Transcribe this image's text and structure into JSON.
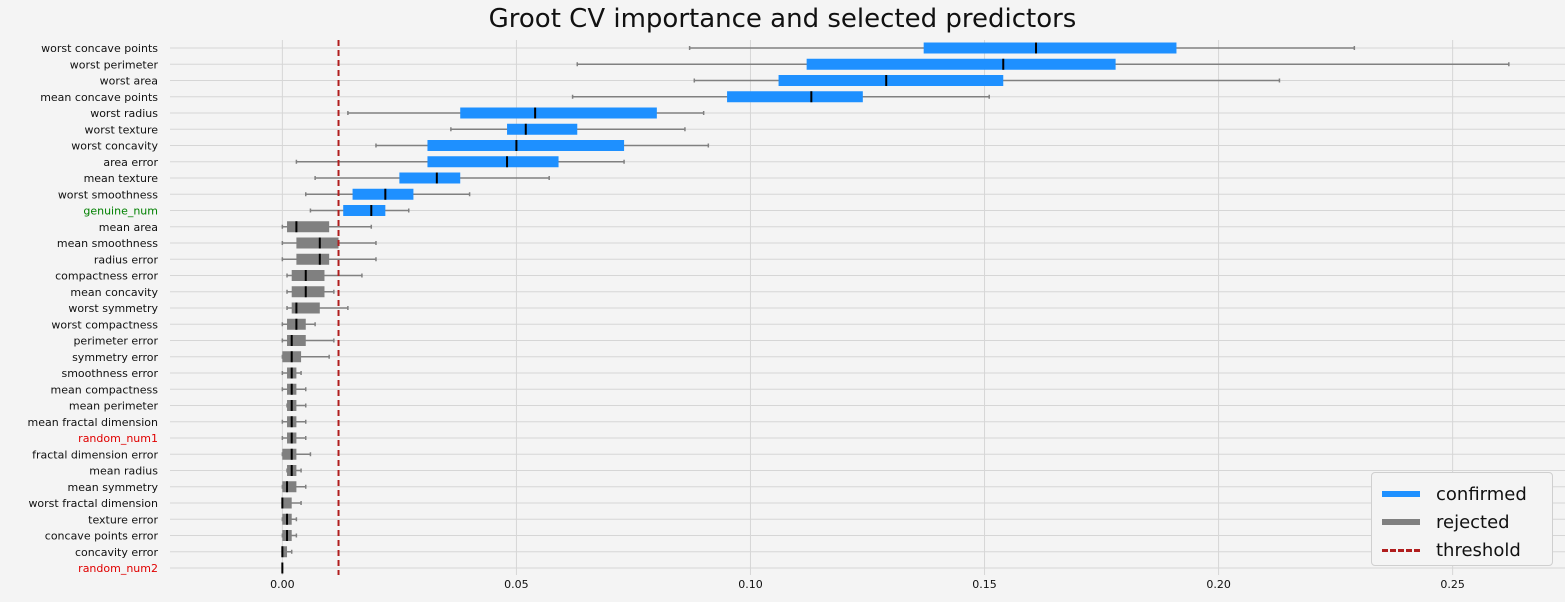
{
  "colors": {
    "confirmed": "#1e90ff",
    "rejected": "#808080",
    "threshold": "#b01d1d",
    "whisker": "#808080",
    "median": "#000000",
    "label_default": "#111111",
    "label_green": "#008000",
    "label_red": "#e00000",
    "grid": "#d6d6d6",
    "background": "#f4f4f4"
  },
  "chart_data": {
    "type": "boxplot",
    "orientation": "horizontal",
    "title": "Groot CV importance and selected predictors",
    "xlabel": "",
    "ylabel": "",
    "xlim": [
      -0.024,
      0.274
    ],
    "xticks": [
      0.0,
      0.05,
      0.1,
      0.15,
      0.2,
      0.25
    ],
    "xtick_labels": [
      "0.00",
      "0.05",
      "0.10",
      "0.15",
      "0.20",
      "0.25"
    ],
    "grid": true,
    "legend_position": "bottom-right",
    "threshold": 0.012,
    "legend": [
      {
        "label": "confirmed",
        "key": "confirmed"
      },
      {
        "label": "rejected",
        "key": "rejected"
      },
      {
        "label": "threshold",
        "key": "threshold"
      }
    ],
    "features": [
      {
        "name": "worst concave points",
        "status": "confirmed",
        "label_color": "default",
        "min": 0.087,
        "q1": 0.137,
        "median": 0.161,
        "q3": 0.191,
        "max": 0.229
      },
      {
        "name": "worst perimeter",
        "status": "confirmed",
        "label_color": "default",
        "min": 0.063,
        "q1": 0.112,
        "median": 0.154,
        "q3": 0.178,
        "max": 0.262
      },
      {
        "name": "worst area",
        "status": "confirmed",
        "label_color": "default",
        "min": 0.088,
        "q1": 0.106,
        "median": 0.129,
        "q3": 0.154,
        "max": 0.213
      },
      {
        "name": "mean concave points",
        "status": "confirmed",
        "label_color": "default",
        "min": 0.062,
        "q1": 0.095,
        "median": 0.113,
        "q3": 0.124,
        "max": 0.151
      },
      {
        "name": "worst radius",
        "status": "confirmed",
        "label_color": "default",
        "min": 0.014,
        "q1": 0.038,
        "median": 0.054,
        "q3": 0.08,
        "max": 0.09
      },
      {
        "name": "worst texture",
        "status": "confirmed",
        "label_color": "default",
        "min": 0.036,
        "q1": 0.048,
        "median": 0.052,
        "q3": 0.063,
        "max": 0.086
      },
      {
        "name": "worst concavity",
        "status": "confirmed",
        "label_color": "default",
        "min": 0.02,
        "q1": 0.031,
        "median": 0.05,
        "q3": 0.073,
        "max": 0.091
      },
      {
        "name": "area error",
        "status": "confirmed",
        "label_color": "default",
        "min": 0.003,
        "q1": 0.031,
        "median": 0.048,
        "q3": 0.059,
        "max": 0.073
      },
      {
        "name": "mean texture",
        "status": "confirmed",
        "label_color": "default",
        "min": 0.007,
        "q1": 0.025,
        "median": 0.033,
        "q3": 0.038,
        "max": 0.057
      },
      {
        "name": "worst smoothness",
        "status": "confirmed",
        "label_color": "default",
        "min": 0.005,
        "q1": 0.015,
        "median": 0.022,
        "q3": 0.028,
        "max": 0.04
      },
      {
        "name": "genuine_num",
        "status": "confirmed",
        "label_color": "green",
        "min": 0.006,
        "q1": 0.013,
        "median": 0.019,
        "q3": 0.022,
        "max": 0.027
      },
      {
        "name": "mean area",
        "status": "rejected",
        "label_color": "default",
        "min": 0.0,
        "q1": 0.001,
        "median": 0.003,
        "q3": 0.01,
        "max": 0.019
      },
      {
        "name": "mean smoothness",
        "status": "rejected",
        "label_color": "default",
        "min": 0.0,
        "q1": 0.003,
        "median": 0.008,
        "q3": 0.012,
        "max": 0.02
      },
      {
        "name": "radius error",
        "status": "rejected",
        "label_color": "default",
        "min": 0.0,
        "q1": 0.003,
        "median": 0.008,
        "q3": 0.01,
        "max": 0.02
      },
      {
        "name": "compactness error",
        "status": "rejected",
        "label_color": "default",
        "min": 0.001,
        "q1": 0.002,
        "median": 0.005,
        "q3": 0.009,
        "max": 0.017
      },
      {
        "name": "mean concavity",
        "status": "rejected",
        "label_color": "default",
        "min": 0.001,
        "q1": 0.002,
        "median": 0.005,
        "q3": 0.009,
        "max": 0.011
      },
      {
        "name": "worst symmetry",
        "status": "rejected",
        "label_color": "default",
        "min": 0.001,
        "q1": 0.002,
        "median": 0.003,
        "q3": 0.008,
        "max": 0.014
      },
      {
        "name": "worst compactness",
        "status": "rejected",
        "label_color": "default",
        "min": 0.0,
        "q1": 0.001,
        "median": 0.003,
        "q3": 0.005,
        "max": 0.007
      },
      {
        "name": "perimeter error",
        "status": "rejected",
        "label_color": "default",
        "min": 0.0,
        "q1": 0.001,
        "median": 0.002,
        "q3": 0.005,
        "max": 0.011
      },
      {
        "name": "symmetry error",
        "status": "rejected",
        "label_color": "default",
        "min": 0.0,
        "q1": 0.0,
        "median": 0.002,
        "q3": 0.004,
        "max": 0.01
      },
      {
        "name": "smoothness error",
        "status": "rejected",
        "label_color": "default",
        "min": 0.0,
        "q1": 0.001,
        "median": 0.002,
        "q3": 0.003,
        "max": 0.004
      },
      {
        "name": "mean compactness",
        "status": "rejected",
        "label_color": "default",
        "min": 0.0,
        "q1": 0.001,
        "median": 0.002,
        "q3": 0.003,
        "max": 0.005
      },
      {
        "name": "mean perimeter",
        "status": "rejected",
        "label_color": "default",
        "min": 0.001,
        "q1": 0.001,
        "median": 0.002,
        "q3": 0.003,
        "max": 0.005
      },
      {
        "name": "mean fractal dimension",
        "status": "rejected",
        "label_color": "default",
        "min": 0.0,
        "q1": 0.001,
        "median": 0.002,
        "q3": 0.003,
        "max": 0.005
      },
      {
        "name": "random_num1",
        "status": "rejected",
        "label_color": "red",
        "min": 0.0,
        "q1": 0.001,
        "median": 0.002,
        "q3": 0.003,
        "max": 0.005
      },
      {
        "name": "fractal dimension error",
        "status": "rejected",
        "label_color": "default",
        "min": 0.0,
        "q1": 0.0,
        "median": 0.002,
        "q3": 0.003,
        "max": 0.006
      },
      {
        "name": "mean radius",
        "status": "rejected",
        "label_color": "default",
        "min": 0.001,
        "q1": 0.001,
        "median": 0.002,
        "q3": 0.003,
        "max": 0.004
      },
      {
        "name": "mean symmetry",
        "status": "rejected",
        "label_color": "default",
        "min": 0.0,
        "q1": 0.0,
        "median": 0.001,
        "q3": 0.003,
        "max": 0.005
      },
      {
        "name": "worst fractal dimension",
        "status": "rejected",
        "label_color": "default",
        "min": 0.0,
        "q1": 0.0,
        "median": 0.0,
        "q3": 0.002,
        "max": 0.004
      },
      {
        "name": "texture error",
        "status": "rejected",
        "label_color": "default",
        "min": 0.0,
        "q1": 0.0,
        "median": 0.001,
        "q3": 0.002,
        "max": 0.003
      },
      {
        "name": "concave points error",
        "status": "rejected",
        "label_color": "default",
        "min": 0.0,
        "q1": 0.0,
        "median": 0.001,
        "q3": 0.002,
        "max": 0.003
      },
      {
        "name": "concavity error",
        "status": "rejected",
        "label_color": "default",
        "min": 0.0,
        "q1": 0.0,
        "median": 0.0,
        "q3": 0.001,
        "max": 0.002
      },
      {
        "name": "random_num2",
        "status": "rejected",
        "label_color": "red",
        "min": 0.0,
        "q1": 0.0,
        "median": 0.0,
        "q3": 0.0,
        "max": 0.0
      }
    ]
  }
}
